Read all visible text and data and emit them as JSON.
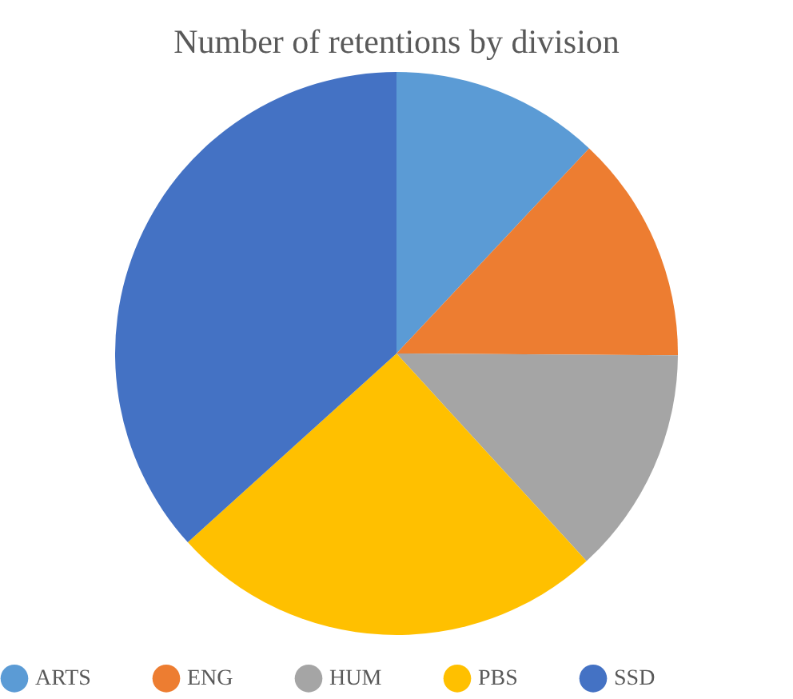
{
  "chart_data": {
    "type": "pie",
    "title": "Number of retentions by division",
    "categories": [
      "ARTS",
      "ENG",
      "HUM",
      "PBS",
      "SSD"
    ],
    "values": [
      12,
      13.1,
      13.1,
      25.1,
      36.7
    ],
    "colors": [
      "#5b9bd5",
      "#ed7d31",
      "#a5a5a5",
      "#ffc000",
      "#4472c4"
    ],
    "legend": "bottom"
  }
}
